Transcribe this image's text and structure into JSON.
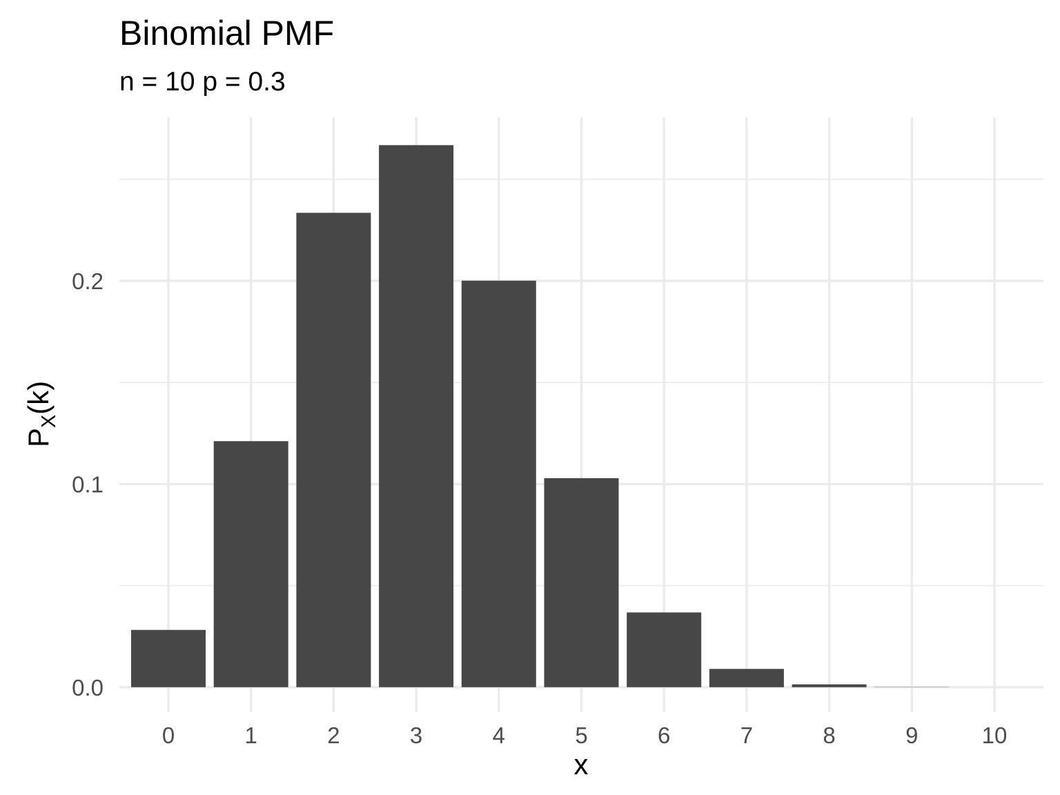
{
  "chart_data": {
    "type": "bar",
    "title": "Binomial PMF",
    "subtitle": "n = 10 p = 0.3",
    "xlabel": "x",
    "ylabel": {
      "main": "P",
      "subscript": "X",
      "suffix": "(k)"
    },
    "categories": [
      "0",
      "1",
      "2",
      "3",
      "4",
      "5",
      "6",
      "7",
      "8",
      "9",
      "10"
    ],
    "values": [
      0.0282,
      0.1211,
      0.2335,
      0.2668,
      0.2001,
      0.1029,
      0.0368,
      0.009,
      0.0014,
      0.0001,
      0.0
    ],
    "yticks": [
      {
        "value": 0.0,
        "label": "0.0"
      },
      {
        "value": 0.1,
        "label": "0.1"
      },
      {
        "value": 0.2,
        "label": "0.2"
      }
    ],
    "yminor": [
      0.05,
      0.15,
      0.25
    ],
    "ylim": [
      -0.0123,
      0.2805
    ],
    "grid": true,
    "legend": "none",
    "bar_color": "#474747",
    "grid_color": "#ebebeb"
  }
}
